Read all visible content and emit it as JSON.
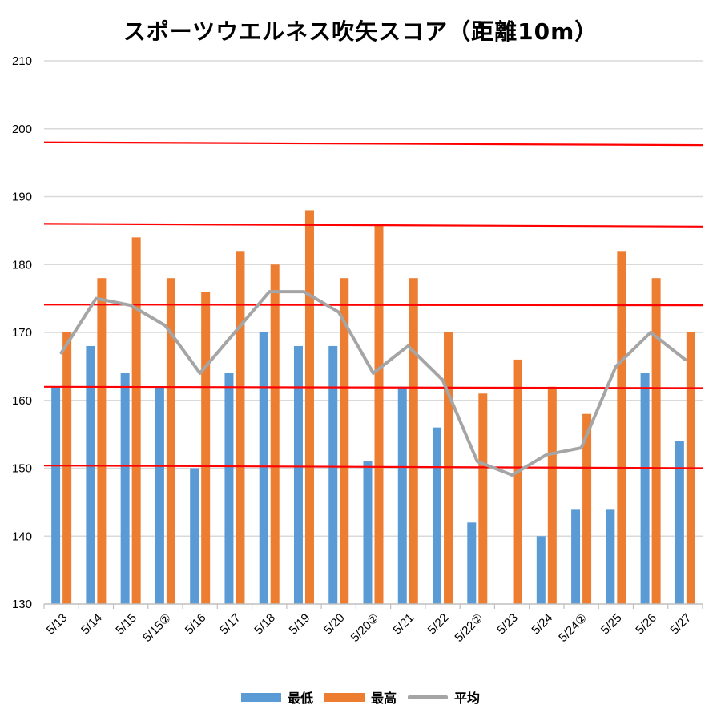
{
  "chart_data": {
    "type": "bar",
    "title": "スポーツウエルネス吹矢スコア（距離10m）",
    "categories": [
      "5/13",
      "5/14",
      "5/15",
      "5/15②",
      "5/16",
      "5/17",
      "5/18",
      "5/19",
      "5/20",
      "5/20②",
      "5/21",
      "5/22",
      "5/22②",
      "5/23",
      "5/24",
      "5/24②",
      "5/25",
      "5/26",
      "5/27"
    ],
    "series": [
      {
        "name": "最低",
        "type": "bar",
        "color": "#5B9BD5",
        "values": [
          162,
          168,
          164,
          162,
          150,
          164,
          170,
          168,
          168,
          151,
          162,
          156,
          142,
          null,
          140,
          144,
          144,
          164,
          154
        ]
      },
      {
        "name": "最高",
        "type": "bar",
        "color": "#ED7D31",
        "values": [
          170,
          178,
          184,
          178,
          176,
          182,
          180,
          188,
          178,
          186,
          178,
          170,
          161,
          166,
          162,
          158,
          182,
          178,
          170
        ]
      },
      {
        "name": "平均",
        "type": "line",
        "color": "#A5A5A5",
        "values": [
          167,
          175,
          174,
          171,
          164,
          170,
          176,
          176,
          173,
          164,
          168,
          163,
          151,
          149,
          152,
          153,
          165,
          170,
          166
        ]
      }
    ],
    "reference_lines": {
      "color": "#FF0000"
    },
    "ylim": [
      130,
      210
    ],
    "yticks": [
      130,
      140,
      150,
      160,
      170,
      180,
      190,
      200,
      210
    ],
    "grid": true,
    "legend_position": "bottom"
  }
}
